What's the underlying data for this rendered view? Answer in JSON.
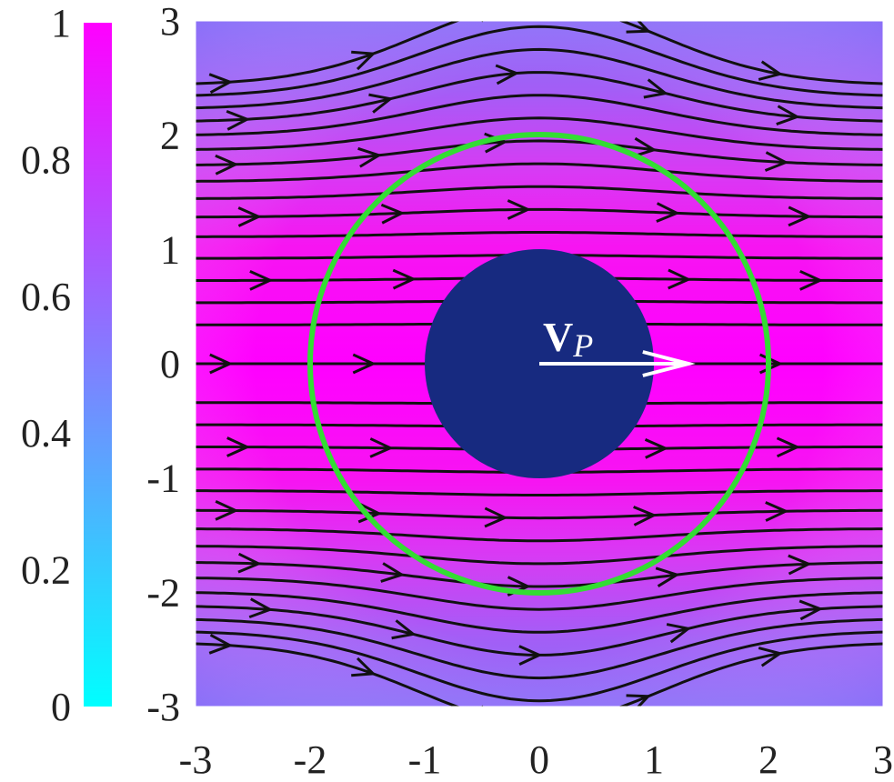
{
  "chart_data": {
    "type": "heatmap",
    "title": "",
    "xlabel": "",
    "ylabel": "",
    "xlim": [
      -3,
      3
    ],
    "ylim": [
      -3,
      3
    ],
    "x_ticks": [
      "-3",
      "-2",
      "-1",
      "0",
      "1",
      "2",
      "3"
    ],
    "y_ticks": [
      "-3",
      "-2",
      "-1",
      "0",
      "1",
      "2",
      "3"
    ],
    "colorbar": {
      "range": [
        0,
        1
      ],
      "ticks": [
        "0",
        "0.2",
        "0.4",
        "0.6",
        "0.8",
        "1"
      ],
      "colormap": [
        "#00ffff",
        "#ff00ff"
      ]
    },
    "field": {
      "description": "normalized speed magnitude, ~1 near y=0, decreasing toward |y|=3",
      "max_value": 1,
      "edge_value": 0.62
    },
    "streamline_offsets_y": [
      -3.15,
      -2.95,
      -2.75,
      -2.55,
      -2.35,
      -2.15,
      -1.95,
      -1.75,
      -1.55,
      -1.35,
      -1.15,
      -0.95,
      -0.75,
      -0.55,
      -0.35,
      0,
      0.35,
      0.55,
      0.75,
      0.95,
      1.15,
      1.35,
      1.55,
      1.75,
      1.95,
      2.15,
      2.35,
      2.55,
      2.75,
      2.95,
      3.15
    ],
    "particle": {
      "center": [
        0,
        0
      ],
      "radius": 1,
      "color": "#172a80"
    },
    "boundary_circle": {
      "center": [
        0,
        0
      ],
      "radius": 2,
      "color": "#33dd33"
    },
    "velocity_vector": {
      "from": [
        0,
        0
      ],
      "to": [
        1.3,
        0
      ],
      "color": "#ffffff",
      "label_main": "V",
      "label_sub": "P"
    }
  }
}
